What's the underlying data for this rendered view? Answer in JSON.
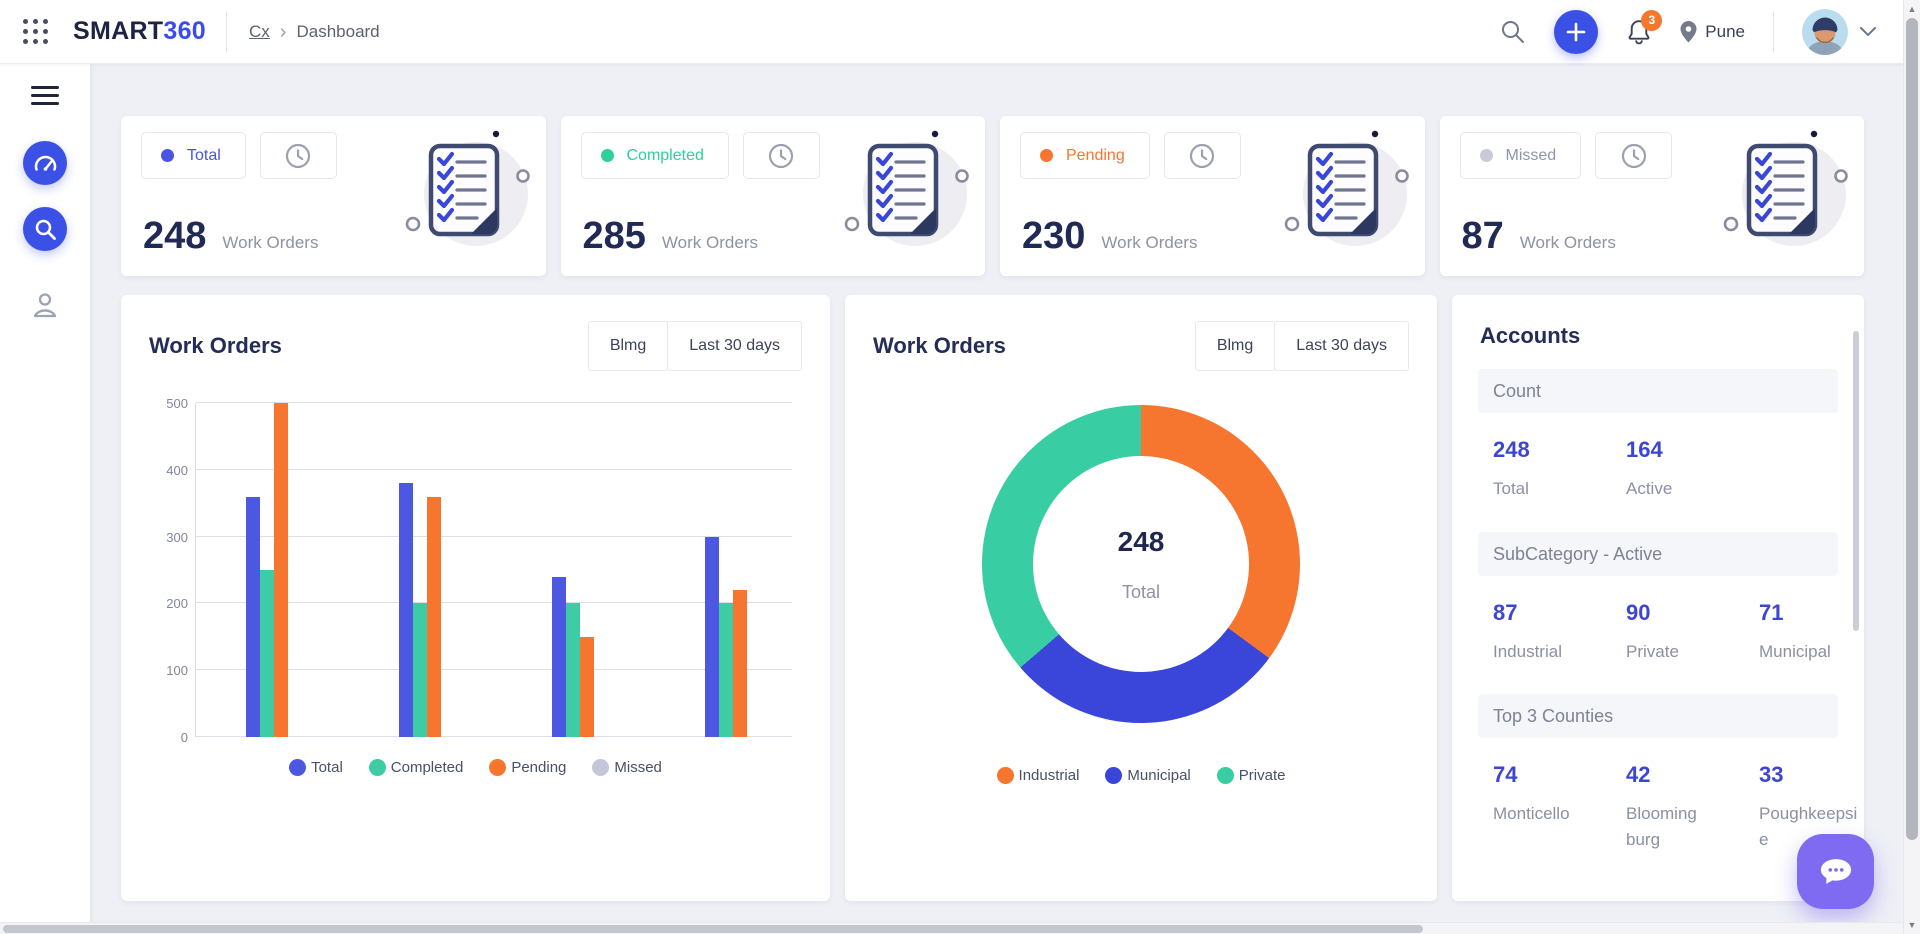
{
  "header": {
    "logo_part1": "SMART",
    "logo_part2": "360",
    "breadcrumb": {
      "root": "Cx",
      "separator": "›",
      "current": "Dashboard"
    },
    "notifications_count": "3",
    "location": "Pune"
  },
  "icons": {
    "app_grid": "grid-dots",
    "search": "magnifier",
    "add": "plus",
    "notifications": "bell",
    "location": "map-pin",
    "profile_menu": "chevron-down",
    "menu": "hamburger",
    "dashboard": "speedometer",
    "explore": "magnifier",
    "user": "person",
    "time_filter": "clock",
    "chat": "chat-bubble"
  },
  "stat_cards": [
    {
      "id": "total",
      "label": "Total",
      "value": "248",
      "unit": "Work Orders",
      "dot_color": "#4a55e1",
      "label_color": "#4a55e1"
    },
    {
      "id": "completed",
      "label": "Completed",
      "value": "285",
      "unit": "Work Orders",
      "dot_color": "#2ecf9e",
      "label_color": "#2ecf9e"
    },
    {
      "id": "pending",
      "label": "Pending",
      "value": "230",
      "unit": "Work Orders",
      "dot_color": "#f7762f",
      "label_color": "#f7762f"
    },
    {
      "id": "missed",
      "label": "Missed",
      "value": "87",
      "unit": "Work Orders",
      "dot_color": "#c9cad9",
      "label_color": "#8f95a8"
    }
  ],
  "bar_card": {
    "title": "Work Orders",
    "filters": [
      "Blmg",
      "Last 30 days"
    ]
  },
  "donut_card": {
    "title": "Work Orders",
    "filters": [
      "Blmg",
      "Last 30 days"
    ],
    "center_value": "248",
    "center_label": "Total"
  },
  "accounts": {
    "title": "Accounts",
    "sections": [
      {
        "header": "Count",
        "items": [
          {
            "value": "248",
            "label": "Total"
          },
          {
            "value": "164",
            "label": "Active"
          }
        ]
      },
      {
        "header": "SubCategory - Active",
        "items": [
          {
            "value": "87",
            "label": "Industrial"
          },
          {
            "value": "90",
            "label": "Private"
          },
          {
            "value": "71",
            "label": "Municipal"
          }
        ]
      },
      {
        "header": "Top 3 Counties",
        "items": [
          {
            "value": "74",
            "label": "Monticello"
          },
          {
            "value": "42",
            "label": "Blooming burg"
          },
          {
            "value": "33",
            "label": "Poughkeepsie"
          }
        ]
      }
    ]
  },
  "chart_data": [
    {
      "type": "bar",
      "title": "Work Orders",
      "categories": [
        "",
        "",
        "",
        ""
      ],
      "series": [
        {
          "name": "Total",
          "color": "#4c57e2",
          "values": [
            360,
            380,
            240,
            300
          ]
        },
        {
          "name": "Completed",
          "color": "#3dcca4",
          "values": [
            250,
            200,
            200,
            200
          ]
        },
        {
          "name": "Pending",
          "color": "#f7762f",
          "values": [
            500,
            360,
            150,
            220
          ]
        },
        {
          "name": "Missed",
          "color": "#c5c6d8",
          "values": [
            0,
            0,
            0,
            0
          ]
        }
      ],
      "ylim": [
        0,
        500
      ],
      "ytick_step": 100,
      "grid": true,
      "legend_position": "bottom"
    },
    {
      "type": "pie",
      "title": "Work Orders",
      "labels": [
        "Industrial",
        "Municipal",
        "Private"
      ],
      "values": [
        87,
        71,
        90
      ],
      "colors": [
        "#f7762f",
        "#3a45d9",
        "#38cda3"
      ],
      "center_value": 248,
      "center_label": "Total",
      "legend_position": "bottom"
    }
  ],
  "colors": {
    "accent_blue": "#3b50e4",
    "badge_orange": "#f4772e",
    "heading_navy": "#232c55",
    "muted_gray": "#8d93a5",
    "accounts_value_blue": "#3c46d2",
    "chat_purple": "#7e6bf2",
    "page_bg": "#eef0f6"
  }
}
